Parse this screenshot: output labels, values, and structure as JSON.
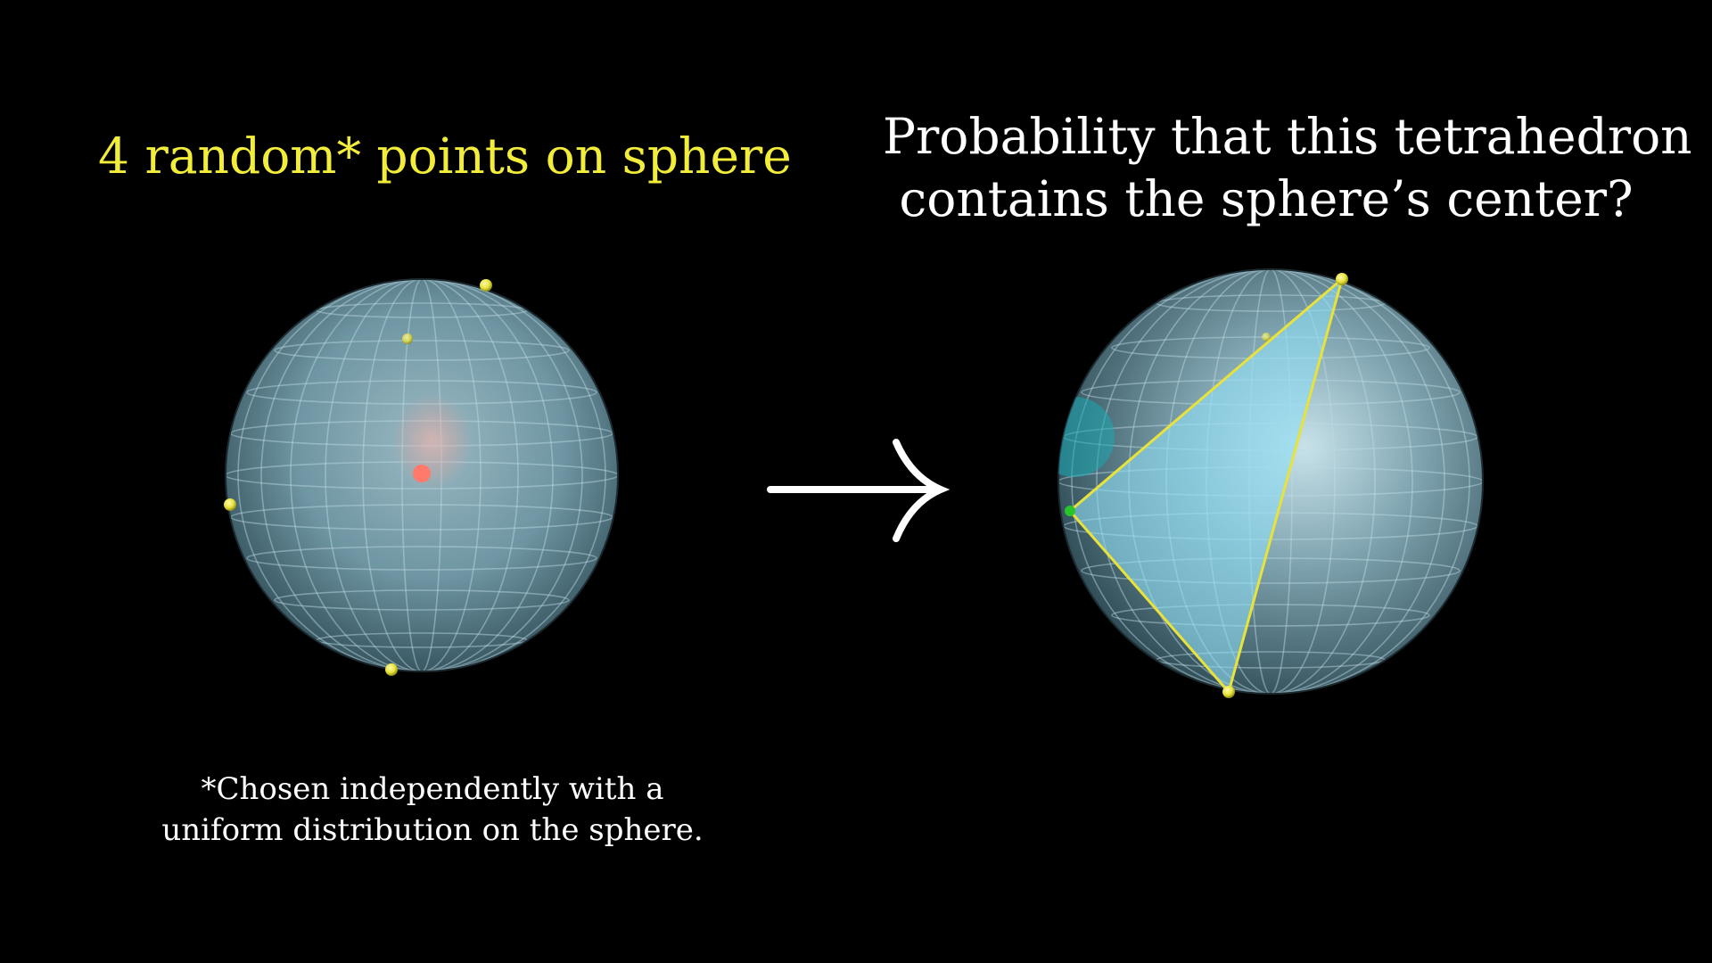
{
  "left_title": "4 random* points on sphere",
  "right_title_line1": "Probability that this tetrahedron",
  "right_title_line2": "contains the sphere’s center?",
  "footnote_line1": "*Chosen independently with a",
  "footnote_line2": "uniform distribution on the sphere.",
  "colors": {
    "background": "#000000",
    "highlight_text": "#f2ec3a",
    "text": "#ffffff",
    "sphere": "#6f96a3",
    "grid": "#bfdbe6",
    "points": "#e8e23a",
    "center_point": "#ff7a6a",
    "tetra_face": "#8fe0f5",
    "green_point": "#29c429"
  },
  "icons": [
    "right-arrow-icon"
  ]
}
